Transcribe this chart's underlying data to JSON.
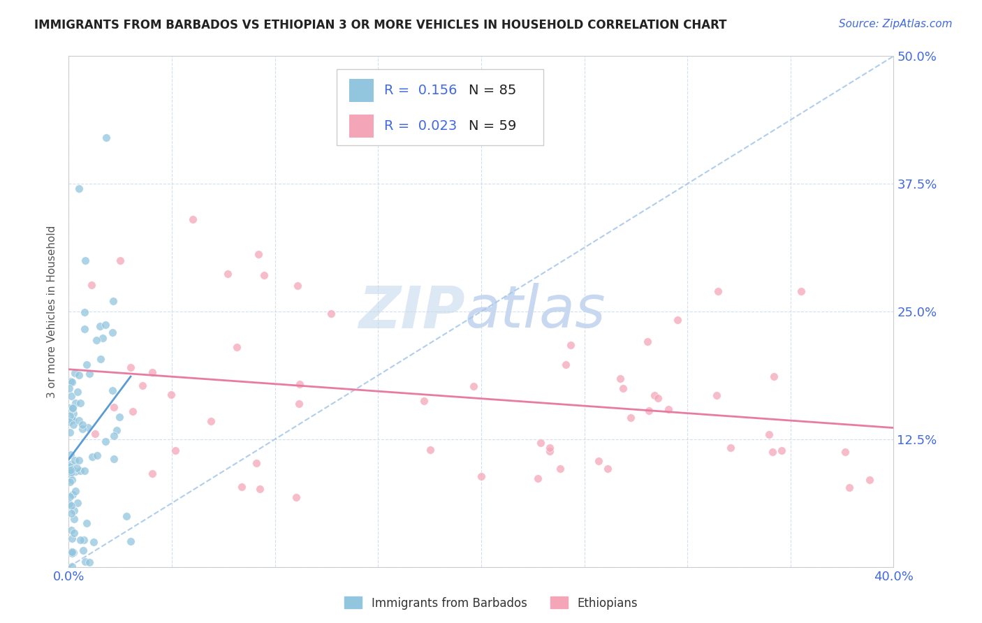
{
  "title": "IMMIGRANTS FROM BARBADOS VS ETHIOPIAN 3 OR MORE VEHICLES IN HOUSEHOLD CORRELATION CHART",
  "source_text": "Source: ZipAtlas.com",
  "ylabel": "3 or more Vehicles in Household",
  "xlim": [
    0.0,
    0.4
  ],
  "ylim": [
    0.0,
    0.5
  ],
  "xticks": [
    0.0,
    0.05,
    0.1,
    0.15,
    0.2,
    0.25,
    0.3,
    0.35,
    0.4
  ],
  "yticks": [
    0.0,
    0.125,
    0.25,
    0.375,
    0.5
  ],
  "legend_R1": "0.156",
  "legend_N1": "85",
  "legend_R2": "0.023",
  "legend_N2": "59",
  "label1": "Immigrants from Barbados",
  "label2": "Ethiopians",
  "color_blue": "#92c5de",
  "color_pink": "#f4a6b8",
  "trend_blue": "#5b9bd5",
  "trend_pink": "#e87ca0",
  "diag_color": "#a8c8e8",
  "watermark_color": "#dde8f5"
}
